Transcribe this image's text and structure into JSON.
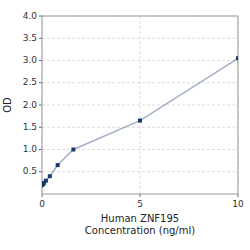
{
  "chart_data": {
    "type": "line",
    "xlabel": "Human ZNF195\nConcentration (ng/ml)",
    "ylabel": "OD",
    "x": [
      0,
      0.05,
      0.1,
      0.2,
      0.4,
      0.8,
      1.6,
      5,
      10
    ],
    "values": [
      0.2,
      0.22,
      0.25,
      0.3,
      0.4,
      0.65,
      1.0,
      1.65,
      3.05
    ],
    "color": "#1a3a6e",
    "marker": "square",
    "xlim": [
      0,
      10
    ],
    "ylim": [
      0,
      4
    ],
    "xticks": [
      0,
      5,
      10
    ],
    "yticks": [
      0.5,
      {
        "value": 1.0,
        "label": "1.0"
      },
      1.5,
      {
        "value": 2.0,
        "label": "2.0"
      },
      2.5,
      {
        "value": 3.0,
        "label": "3.0"
      },
      3.5,
      {
        "value": 4.0,
        "label": "4.0"
      }
    ],
    "grid": true
  }
}
